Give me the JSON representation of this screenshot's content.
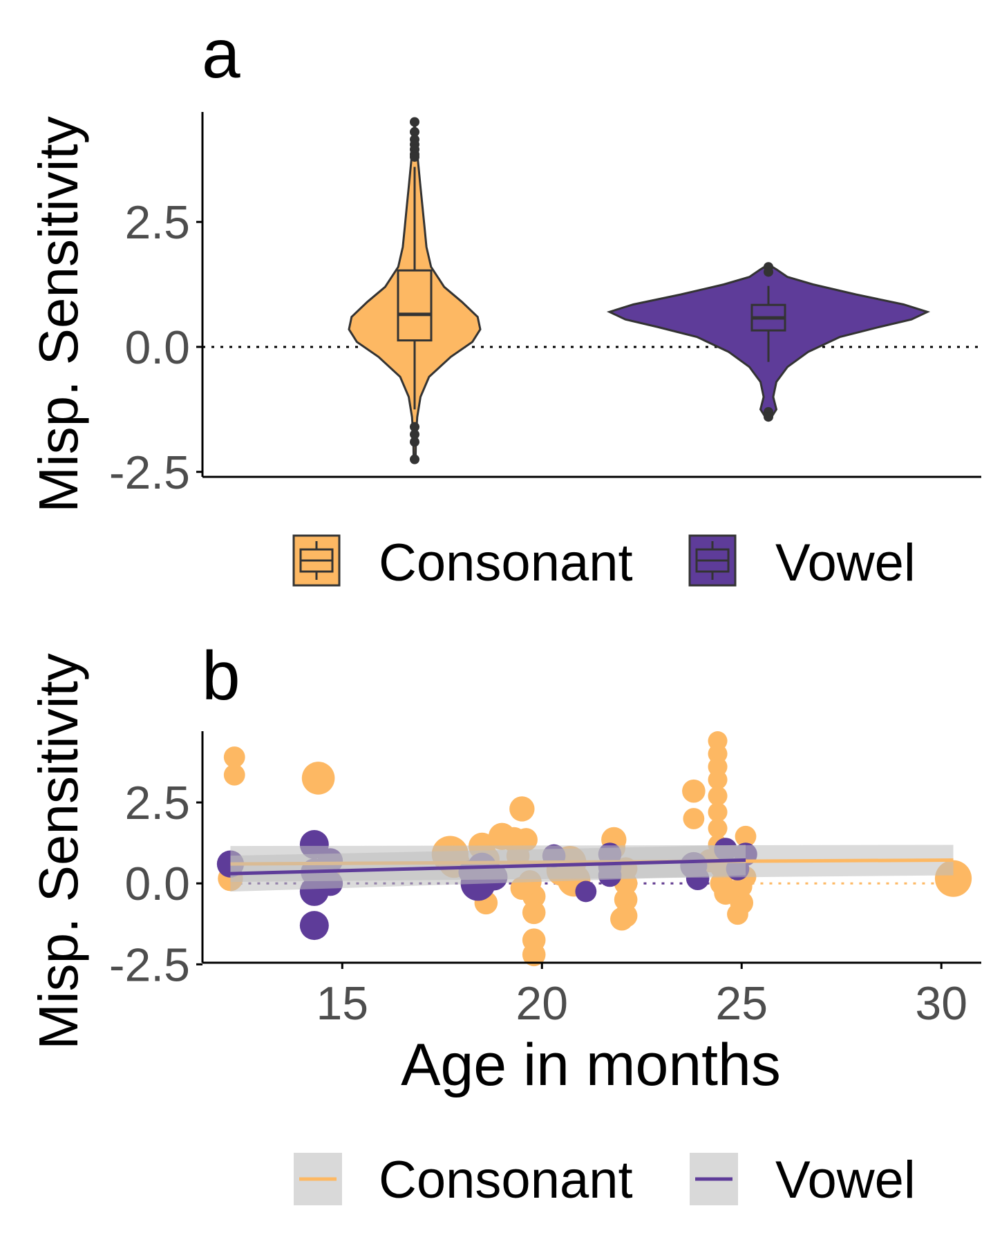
{
  "colors": {
    "consonant": "#FDB863",
    "vowel": "#5E3C99",
    "axis": "#000000",
    "tick_label": "#4D4D4D",
    "band": "#BEBEBE"
  },
  "chart_data": [
    {
      "panel_label": "a",
      "type": "violin",
      "ylabel": "Misp. Sensitivity",
      "ylim": [
        -2.6,
        4.7
      ],
      "y_ticks": [
        "-2.5",
        "0.0",
        "2.5"
      ],
      "y_tick_values": [
        -2.5,
        0,
        2.5
      ],
      "reference_line": 0,
      "legend": {
        "position": "bottom",
        "entries": [
          "Consonant",
          "Vowel"
        ]
      },
      "groups": [
        {
          "name": "Consonant",
          "density": [
            [
              -2.25,
              0.015
            ],
            [
              -1.8,
              0.02
            ],
            [
              -1.4,
              0.04
            ],
            [
              -1.0,
              0.09
            ],
            [
              -0.6,
              0.22
            ],
            [
              -0.2,
              0.55
            ],
            [
              0.1,
              0.88
            ],
            [
              0.35,
              1.0
            ],
            [
              0.6,
              0.96
            ],
            [
              0.9,
              0.72
            ],
            [
              1.2,
              0.45
            ],
            [
              1.6,
              0.25
            ],
            [
              2.0,
              0.18
            ],
            [
              2.4,
              0.15
            ],
            [
              2.8,
              0.12
            ],
            [
              3.2,
              0.09
            ],
            [
              3.6,
              0.06
            ],
            [
              4.0,
              0.03
            ],
            [
              4.3,
              0.015
            ],
            [
              4.5,
              0.0
            ]
          ],
          "box": {
            "q1": 0.13,
            "median": 0.65,
            "q3": 1.53,
            "whisker_low": -1.25,
            "whisker_high": 3.6
          },
          "outliers": [
            4.5,
            4.3,
            4.15,
            4.05,
            3.95,
            3.85,
            3.8,
            -1.6,
            -1.75,
            -1.9,
            -2.25
          ]
        },
        {
          "name": "Vowel",
          "density": [
            [
              -1.4,
              0.02
            ],
            [
              -1.25,
              0.05
            ],
            [
              -1.0,
              0.03
            ],
            [
              -0.7,
              0.05
            ],
            [
              -0.4,
              0.12
            ],
            [
              -0.1,
              0.25
            ],
            [
              0.2,
              0.45
            ],
            [
              0.4,
              0.7
            ],
            [
              0.55,
              0.9
            ],
            [
              0.7,
              1.0
            ],
            [
              0.85,
              0.85
            ],
            [
              1.05,
              0.55
            ],
            [
              1.25,
              0.28
            ],
            [
              1.4,
              0.12
            ],
            [
              1.55,
              0.05
            ],
            [
              1.65,
              0.0
            ]
          ],
          "box": {
            "q1": 0.33,
            "median": 0.58,
            "q3": 0.84,
            "whisker_low": -0.3,
            "whisker_high": 1.22
          },
          "outliers": [
            1.6,
            1.5,
            -1.3,
            -1.4
          ]
        }
      ]
    },
    {
      "panel_label": "b",
      "type": "scatter",
      "xlabel": "Age in months",
      "ylabel": "Misp. Sensitivity",
      "xlim": [
        11.5,
        31
      ],
      "ylim": [
        -2.45,
        4.7
      ],
      "x_ticks": [
        "15",
        "20",
        "25",
        "30"
      ],
      "x_tick_values": [
        15,
        20,
        25,
        30
      ],
      "y_ticks": [
        "-2.5",
        "0.0",
        "2.5"
      ],
      "y_tick_values": [
        -2.5,
        0,
        2.5
      ],
      "legend": {
        "position": "bottom",
        "entries": [
          "Consonant",
          "Vowel"
        ]
      },
      "series": [
        {
          "name": "Consonant",
          "points": [
            [
              12.3,
              3.9,
              11
            ],
            [
              12.3,
              3.35,
              11
            ],
            [
              12.2,
              0.15,
              13
            ],
            [
              14.4,
              3.25,
              17
            ],
            [
              14.6,
              0.35,
              14
            ],
            [
              17.7,
              0.9,
              19
            ],
            [
              17.8,
              0.65,
              16
            ],
            [
              18.5,
              1.15,
              14
            ],
            [
              18.6,
              0.75,
              14
            ],
            [
              18.6,
              -0.6,
              12
            ],
            [
              19.0,
              1.45,
              14
            ],
            [
              19.3,
              1.35,
              13
            ],
            [
              19.5,
              2.3,
              13
            ],
            [
              19.6,
              1.35,
              12
            ],
            [
              19.4,
              0.85,
              12
            ],
            [
              19.7,
              0.05,
              12
            ],
            [
              19.8,
              -0.4,
              12
            ],
            [
              19.8,
              -0.9,
              12
            ],
            [
              19.8,
              -1.75,
              12
            ],
            [
              19.8,
              -2.2,
              12
            ],
            [
              19.5,
              -0.15,
              12
            ],
            [
              20.5,
              0.4,
              16
            ],
            [
              20.7,
              0.65,
              17
            ],
            [
              20.8,
              0.1,
              17
            ],
            [
              21.8,
              1.35,
              13
            ],
            [
              21.8,
              1.1,
              12
            ],
            [
              22.1,
              0.45,
              12
            ],
            [
              22.1,
              0.0,
              12
            ],
            [
              22.1,
              -0.5,
              12
            ],
            [
              22.1,
              -1.0,
              12
            ],
            [
              22.0,
              -1.1,
              12
            ],
            [
              23.8,
              2.85,
              12
            ],
            [
              23.8,
              2.0,
              11
            ],
            [
              24.4,
              4.4,
              10
            ],
            [
              24.4,
              4.0,
              10
            ],
            [
              24.4,
              3.6,
              10
            ],
            [
              24.4,
              3.2,
              10
            ],
            [
              24.4,
              2.7,
              10
            ],
            [
              24.4,
              2.2,
              10
            ],
            [
              24.4,
              1.7,
              10
            ],
            [
              24.4,
              1.2,
              10
            ],
            [
              24.5,
              0.5,
              12
            ],
            [
              24.5,
              0.0,
              12
            ],
            [
              24.6,
              -0.3,
              12
            ],
            [
              24.9,
              -0.95,
              11
            ],
            [
              25.0,
              -0.6,
              12
            ],
            [
              25.1,
              1.45,
              11
            ],
            [
              25.1,
              0.2,
              11
            ],
            [
              25.0,
              -0.1,
              11
            ],
            [
              24.2,
              0.7,
              12
            ],
            [
              30.3,
              0.15,
              19
            ]
          ]
        },
        {
          "name": "Vowel",
          "points": [
            [
              12.2,
              0.6,
              14
            ],
            [
              14.3,
              1.2,
              15
            ],
            [
              14.3,
              0.35,
              14
            ],
            [
              14.3,
              -0.25,
              15
            ],
            [
              14.3,
              -1.3,
              15
            ],
            [
              14.7,
              0.7,
              13
            ],
            [
              14.7,
              0.0,
              13
            ],
            [
              18.2,
              0.35,
              12
            ],
            [
              18.4,
              0.0,
              18
            ],
            [
              18.5,
              0.5,
              15
            ],
            [
              18.8,
              0.2,
              14
            ],
            [
              20.3,
              0.85,
              12
            ],
            [
              21.1,
              -0.25,
              11
            ],
            [
              21.7,
              0.9,
              12
            ],
            [
              21.7,
              0.5,
              12
            ],
            [
              21.7,
              0.25,
              12
            ],
            [
              23.8,
              0.55,
              14
            ],
            [
              23.9,
              0.15,
              12
            ],
            [
              24.6,
              1.05,
              12
            ],
            [
              24.9,
              0.45,
              12
            ],
            [
              25.1,
              0.9,
              12
            ]
          ]
        }
      ],
      "fits": [
        {
          "name": "Consonant",
          "x": [
            12.2,
            30.3
          ],
          "y": [
            0.6,
            0.72
          ]
        },
        {
          "name": "Vowel",
          "x": [
            12.2,
            25.1
          ],
          "y": [
            0.3,
            0.72
          ]
        }
      ]
    }
  ]
}
